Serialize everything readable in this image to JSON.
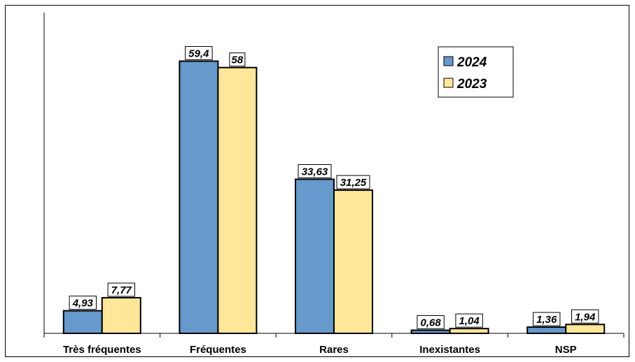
{
  "chart_data": {
    "type": "bar",
    "categories": [
      "Très fréquentes",
      "Fréquentes",
      "Rares",
      "Inexistantes",
      "NSP"
    ],
    "series": [
      {
        "name": "2024",
        "color": "#6699CC",
        "values": [
          4.93,
          59.4,
          33.63,
          0.68,
          1.36
        ],
        "labels": [
          "4,93",
          "59,4",
          "33,63",
          "0,68",
          "1,36"
        ]
      },
      {
        "name": "2023",
        "color": "#FFE699",
        "values": [
          7.77,
          58,
          31.25,
          1.04,
          1.94
        ],
        "labels": [
          "7,77",
          "58",
          "31,25",
          "1,04",
          "1,94"
        ]
      }
    ],
    "ylim": [
      0,
      70
    ],
    "title": "",
    "xlabel": "",
    "ylabel": "",
    "grid": false,
    "legend_position": "top-right"
  }
}
